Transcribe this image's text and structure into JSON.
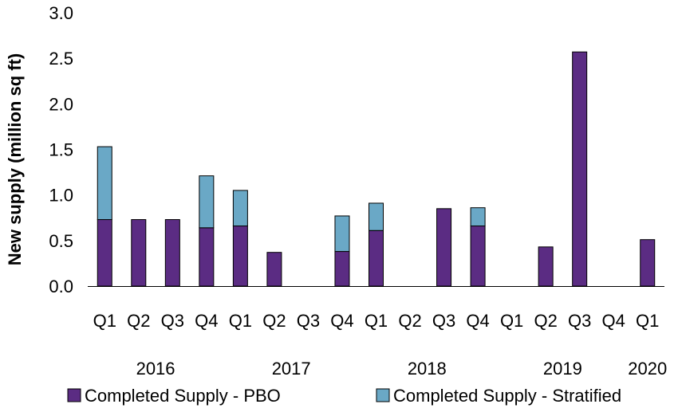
{
  "chart_data": {
    "type": "bar",
    "stacked": true,
    "ylabel": "New supply (million sq ft)",
    "ylim": [
      0,
      3.0
    ],
    "yticks": [
      "0.0",
      "0.5",
      "1.0",
      "1.5",
      "2.0",
      "2.5",
      "3.0"
    ],
    "categories": [
      "Q1",
      "Q2",
      "Q3",
      "Q4",
      "Q1",
      "Q2",
      "Q3",
      "Q4",
      "Q1",
      "Q2",
      "Q3",
      "Q4",
      "Q1",
      "Q2",
      "Q3",
      "Q4",
      "Q1"
    ],
    "year_groups": [
      {
        "label": "2016",
        "start": 0,
        "end": 3
      },
      {
        "label": "2017",
        "start": 4,
        "end": 7
      },
      {
        "label": "2018",
        "start": 8,
        "end": 11
      },
      {
        "label": "2019",
        "start": 12,
        "end": 15
      },
      {
        "label": "2020",
        "start": 16,
        "end": 16
      }
    ],
    "series": [
      {
        "name": "Completed Supply - PBO",
        "color": "#5b2c83",
        "values": [
          0.73,
          0.73,
          0.73,
          0.64,
          0.66,
          0.37,
          0,
          0.38,
          0.61,
          0,
          0.85,
          0.66,
          0,
          0.43,
          2.57,
          0,
          0.51
        ]
      },
      {
        "name": "Completed Supply - Stratified",
        "color": "#6aa8c6",
        "values": [
          0.8,
          0,
          0,
          0.57,
          0.39,
          0,
          0,
          0.39,
          0.3,
          0,
          0,
          0.2,
          0,
          0,
          0,
          0,
          0
        ]
      }
    ],
    "legend_position": "bottom",
    "grid": false
  }
}
